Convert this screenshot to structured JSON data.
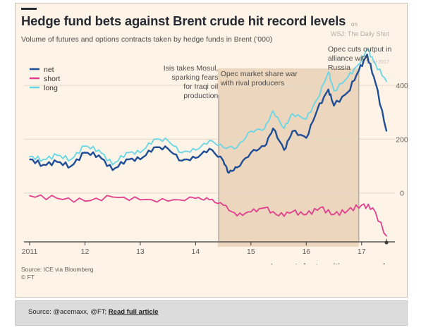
{
  "title": "Hedge fund bets against Brent crude hit record levels",
  "title_suffix": "on",
  "subtitle": "Volume of futures and options contracts taken by hedge funds in Brent ('000)",
  "watermark": "WSJ: The Daily Shot",
  "watermark_date": "21-Jul-2017",
  "source_line1": "Source: ICE via Bloomberg",
  "source_line2": "© FT",
  "bottom_bar": {
    "source_prefix": "Source: @acemaxx, @FT; ",
    "link_label": "Read full article"
  },
  "colors": {
    "net": "#1f4e96",
    "short": "#e0408e",
    "long": "#67d6e6",
    "shade": "#ecd6bd",
    "background": "#fdf3e6"
  },
  "chart_data": {
    "type": "line",
    "x_ticks": [
      {
        "x": 2011,
        "label": "2011"
      },
      {
        "x": 2012,
        "label": "12"
      },
      {
        "x": 2013,
        "label": "13"
      },
      {
        "x": 2014,
        "label": "14"
      },
      {
        "x": 2015,
        "label": "15"
      },
      {
        "x": 2016,
        "label": "16"
      },
      {
        "x": 2017,
        "label": "17"
      }
    ],
    "y_ticks": [
      {
        "y": 0,
        "label": "0"
      },
      {
        "y": 200,
        "label": "200"
      },
      {
        "y": 400,
        "label": "400"
      }
    ],
    "ylim": [
      -200,
      500
    ],
    "xlim": [
      2011,
      2017.5
    ],
    "grid": true,
    "legend_position": "top-left",
    "shaded_regions": [
      {
        "start": 2014.4,
        "end": 2016.95,
        "label": "Opec market share war with rival producers"
      }
    ],
    "annotations": [
      {
        "x": 2014.42,
        "text": "Isis takes Mosul, sparking fears for Iraqi oil production"
      },
      {
        "x": 2016.95,
        "text": "Opec cuts output in alliance with Russia"
      },
      {
        "x": 2017.45,
        "text": "Largest short position on record"
      }
    ],
    "series": [
      {
        "name": "net",
        "points": [
          [
            2011.0,
            125
          ],
          [
            2011.25,
            105
          ],
          [
            2011.5,
            115
          ],
          [
            2011.75,
            100
          ],
          [
            2012.0,
            150
          ],
          [
            2012.25,
            140
          ],
          [
            2012.5,
            85
          ],
          [
            2012.75,
            125
          ],
          [
            2013.0,
            125
          ],
          [
            2013.25,
            170
          ],
          [
            2013.5,
            165
          ],
          [
            2013.75,
            120
          ],
          [
            2014.0,
            130
          ],
          [
            2014.25,
            165
          ],
          [
            2014.5,
            120
          ],
          [
            2014.6,
            75
          ],
          [
            2014.75,
            95
          ],
          [
            2015.0,
            150
          ],
          [
            2015.25,
            175
          ],
          [
            2015.4,
            240
          ],
          [
            2015.6,
            160
          ],
          [
            2015.75,
            230
          ],
          [
            2016.0,
            205
          ],
          [
            2016.2,
            310
          ],
          [
            2016.4,
            385
          ],
          [
            2016.5,
            325
          ],
          [
            2016.75,
            375
          ],
          [
            2016.95,
            455
          ],
          [
            2017.1,
            515
          ],
          [
            2017.25,
            410
          ],
          [
            2017.45,
            230
          ]
        ]
      },
      {
        "name": "short",
        "points": [
          [
            2011.0,
            -10
          ],
          [
            2011.5,
            -20
          ],
          [
            2012.0,
            -30
          ],
          [
            2012.5,
            -15
          ],
          [
            2013.0,
            -25
          ],
          [
            2013.5,
            -30
          ],
          [
            2014.0,
            -20
          ],
          [
            2014.25,
            -25
          ],
          [
            2014.5,
            -45
          ],
          [
            2014.75,
            -85
          ],
          [
            2015.0,
            -70
          ],
          [
            2015.25,
            -55
          ],
          [
            2015.5,
            -85
          ],
          [
            2015.75,
            -70
          ],
          [
            2016.0,
            -80
          ],
          [
            2016.25,
            -55
          ],
          [
            2016.5,
            -80
          ],
          [
            2016.75,
            -65
          ],
          [
            2017.0,
            -45
          ],
          [
            2017.2,
            -55
          ],
          [
            2017.45,
            -160
          ]
        ]
      },
      {
        "name": "long",
        "points": [
          [
            2011.0,
            135
          ],
          [
            2011.25,
            125
          ],
          [
            2011.5,
            140
          ],
          [
            2011.75,
            125
          ],
          [
            2012.0,
            175
          ],
          [
            2012.25,
            160
          ],
          [
            2012.5,
            105
          ],
          [
            2012.75,
            150
          ],
          [
            2013.0,
            150
          ],
          [
            2013.25,
            200
          ],
          [
            2013.5,
            195
          ],
          [
            2013.75,
            150
          ],
          [
            2014.0,
            160
          ],
          [
            2014.25,
            195
          ],
          [
            2014.5,
            170
          ],
          [
            2014.75,
            170
          ],
          [
            2015.0,
            230
          ],
          [
            2015.25,
            240
          ],
          [
            2015.4,
            305
          ],
          [
            2015.6,
            240
          ],
          [
            2015.75,
            295
          ],
          [
            2016.0,
            275
          ],
          [
            2016.2,
            350
          ],
          [
            2016.4,
            450
          ],
          [
            2016.5,
            380
          ],
          [
            2016.75,
            430
          ],
          [
            2016.95,
            480
          ],
          [
            2017.1,
            535
          ],
          [
            2017.25,
            480
          ],
          [
            2017.45,
            415
          ]
        ]
      }
    ]
  }
}
